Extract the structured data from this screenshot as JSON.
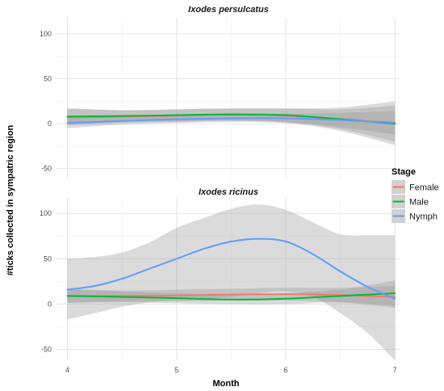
{
  "chart_data": {
    "type": "line",
    "xlabel": "Month",
    "ylabel": "#ticks collected in sympatric region",
    "xlim": [
      3.9,
      7.05
    ],
    "x_ticks": [
      4,
      5,
      6,
      7
    ],
    "grid": true,
    "legend": {
      "title": "Stage",
      "placement": "right",
      "entries": [
        {
          "name": "Female",
          "color": "#F8766D"
        },
        {
          "name": "Male",
          "color": "#00BA38"
        },
        {
          "name": "Nymph",
          "color": "#619CFF"
        }
      ]
    },
    "panels": [
      {
        "title": "Ixodes persulcatus",
        "ylim": [
          -62,
          118
        ],
        "y_ticks": [
          -50,
          0,
          50,
          100
        ],
        "series": [
          {
            "name": "Female",
            "color": "#F8766D",
            "x": [
              4,
              4.5,
              5,
              5.5,
              6,
              6.5,
              7
            ],
            "y": [
              7,
              8,
              9,
              10,
              9,
              5,
              1
            ],
            "lower": [
              -2,
              1,
              2,
              3,
              1,
              -8,
              -24
            ],
            "upper": [
              17,
              15,
              16,
              17,
              17,
              18,
              25
            ]
          },
          {
            "name": "Male",
            "color": "#00BA38",
            "x": [
              4,
              4.5,
              5,
              5.5,
              6,
              6.5,
              7
            ],
            "y": [
              8,
              8.5,
              9.5,
              10.5,
              9.5,
              5,
              0
            ],
            "lower": [
              -1,
              2,
              3,
              4,
              2,
              -6,
              -20
            ],
            "upper": [
              17,
              15,
              16,
              17,
              17,
              16,
              20
            ]
          },
          {
            "name": "Nymph",
            "color": "#619CFF",
            "x": [
              4,
              4.5,
              5,
              5.5,
              6,
              6.5,
              7
            ],
            "y": [
              1,
              3,
              5,
              6,
              6,
              4,
              1
            ],
            "lower": [
              -5,
              -1,
              1,
              2,
              1,
              -4,
              -12
            ],
            "upper": [
              7,
              7,
              9,
              10,
              11,
              12,
              14
            ]
          }
        ]
      },
      {
        "title": "Ixodes ricinus",
        "ylim": [
          -62,
          118
        ],
        "y_ticks": [
          -50,
          0,
          50,
          100
        ],
        "series": [
          {
            "name": "Female",
            "color": "#F8766D",
            "x": [
              4,
              4.5,
              5,
              5.5,
              6,
              6.5,
              7
            ],
            "y": [
              9,
              9,
              9.5,
              10.5,
              11,
              10,
              8
            ],
            "lower": [
              1,
              3,
              3,
              4,
              4,
              2,
              -4
            ],
            "upper": [
              17,
              15,
              16,
              17,
              18,
              18,
              20
            ]
          },
          {
            "name": "Male",
            "color": "#00BA38",
            "x": [
              4,
              4.5,
              5,
              5.5,
              6,
              6.5,
              7
            ],
            "y": [
              9,
              8,
              6.5,
              5,
              6,
              9,
              12
            ],
            "lower": [
              2,
              2,
              1,
              0,
              0,
              2,
              -2
            ],
            "upper": [
              16,
              14,
              12,
              11,
              12,
              16,
              26
            ]
          },
          {
            "name": "Nymph",
            "color": "#619CFF",
            "x": [
              4,
              4.25,
              4.5,
              4.75,
              5,
              5.25,
              5.5,
              5.75,
              6,
              6.25,
              6.5,
              6.75,
              7
            ],
            "y": [
              16,
              20,
              28,
              39,
              50,
              61,
              69,
              72,
              69,
              55,
              36,
              19,
              6
            ],
            "lower": [
              -17,
              -10,
              -3,
              2,
              5,
              6,
              8,
              12,
              14,
              8,
              -10,
              -32,
              -62
            ],
            "upper": [
              50,
              52,
              57,
              68,
              84,
              95,
              105,
              110,
              104,
              90,
              77,
              76,
              76
            ]
          }
        ]
      }
    ]
  }
}
